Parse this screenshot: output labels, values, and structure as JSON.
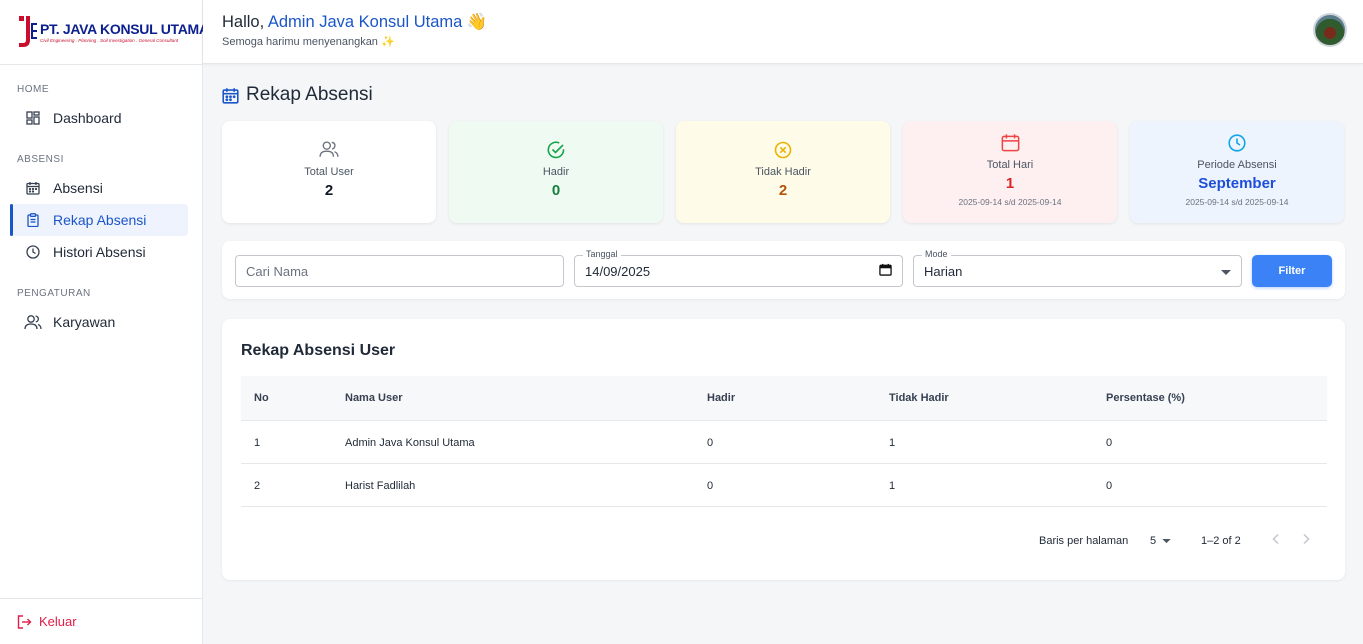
{
  "brand": {
    "title": "PT. JAVA KONSUL UTAMA",
    "subtitle": "Civil Engineering . Planning . Soil Investigation . General Consultant"
  },
  "sidebar": {
    "sections": [
      {
        "label": "HOME"
      },
      {
        "label": "ABSENSI"
      },
      {
        "label": "PENGATURAN"
      }
    ],
    "items": [
      {
        "label": "Dashboard",
        "icon": "dashboard-icon"
      },
      {
        "label": "Absensi",
        "icon": "calendar-icon"
      },
      {
        "label": "Rekap Absensi",
        "icon": "clipboard-icon",
        "active": true
      },
      {
        "label": "Histori Absensi",
        "icon": "clock-icon"
      },
      {
        "label": "Karyawan",
        "icon": "users-icon"
      }
    ],
    "logout": "Keluar"
  },
  "header": {
    "hello": "Hallo,",
    "user": "Admin Java Konsul Utama",
    "wave": "👋",
    "sub": "Semoga harimu menyenangkan ✨"
  },
  "page": {
    "title": "Rekap Absensi"
  },
  "stats": [
    {
      "label": "Total User",
      "value": "2",
      "color": "#111827",
      "bg": "#ffffff",
      "icon": "users-icon"
    },
    {
      "label": "Hadir",
      "value": "0",
      "color": "#15803d",
      "bg": "#effbf2",
      "icon": "check-circle-icon"
    },
    {
      "label": "Tidak Hadir",
      "value": "2",
      "color": "#b45309",
      "bg": "#fefce8",
      "icon": "x-circle-icon"
    },
    {
      "label": "Total Hari",
      "value": "1",
      "range": "2025-09-14 s/d 2025-09-14",
      "color": "#dc2626",
      "bg": "#fef0f0",
      "icon": "calendar-icon"
    },
    {
      "label": "Periode Absensi",
      "value": "September",
      "range": "2025-09-14 s/d 2025-09-14",
      "color": "#1d4ed8",
      "bg": "#eef4fd",
      "icon": "clock-icon"
    }
  ],
  "filters": {
    "search_placeholder": "Cari Nama",
    "date_label": "Tanggal",
    "date_value": "14/09/2025",
    "mode_label": "Mode",
    "mode_value": "Harian",
    "button": "Filter"
  },
  "table": {
    "title": "Rekap Absensi User",
    "columns": [
      "No",
      "Nama User",
      "Hadir",
      "Tidak Hadir",
      "Persentase (%)"
    ],
    "rows": [
      [
        "1",
        "Admin Java Konsul Utama",
        "0",
        "1",
        "0"
      ],
      [
        "2",
        "Harist Fadlilah",
        "0",
        "1",
        "0"
      ]
    ],
    "pagination": {
      "rows_per_page_label": "Baris per halaman",
      "rows_per_page": "5",
      "range": "1–2 of 2"
    }
  }
}
